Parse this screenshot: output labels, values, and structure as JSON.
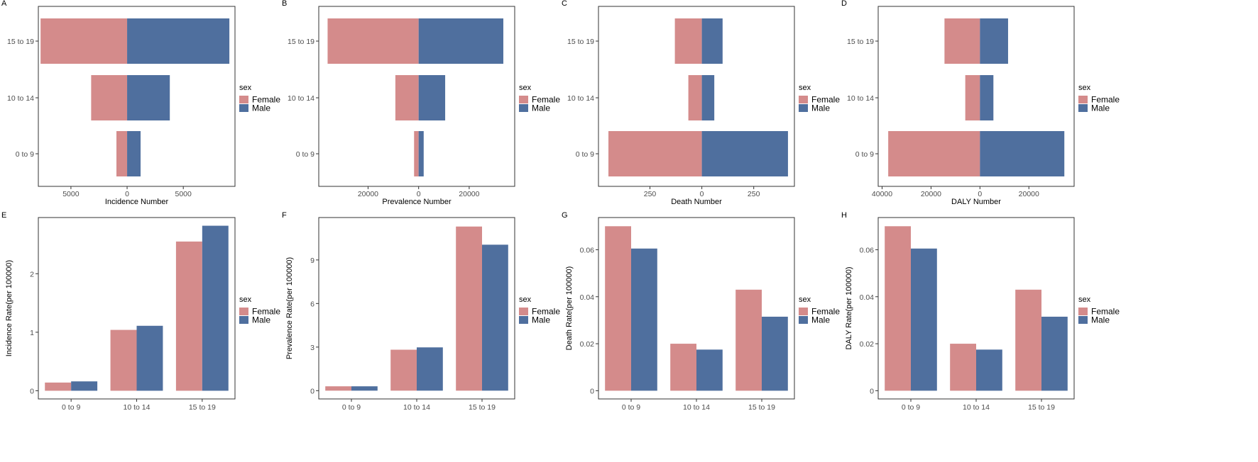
{
  "colors": {
    "female": "#d48b8b",
    "male": "#4f6f9e"
  },
  "legend": {
    "title": "sex",
    "items": [
      "Female",
      "Male"
    ]
  },
  "chart_data": [
    {
      "panel": "A",
      "type": "bar",
      "orientation": "horizontal",
      "categories": [
        "15 to 19",
        "10 to 14",
        "0 to 9"
      ],
      "series": [
        {
          "name": "Female",
          "values": [
            7700,
            3200,
            950
          ]
        },
        {
          "name": "Male",
          "values": [
            9100,
            3800,
            1200
          ]
        }
      ],
      "xlabel": "Incidence Number",
      "xlim": [
        -7900,
        9600
      ],
      "xticks": [
        -5000,
        0,
        5000
      ],
      "xtick_labels": [
        "5000",
        "0",
        "5000"
      ]
    },
    {
      "panel": "B",
      "type": "bar",
      "orientation": "horizontal",
      "categories": [
        "15 to 19",
        "10 to 14",
        "0 to 9"
      ],
      "series": [
        {
          "name": "Female",
          "values": [
            36000,
            9200,
            1800
          ]
        },
        {
          "name": "Male",
          "values": [
            33500,
            10500,
            2000
          ]
        }
      ],
      "xlabel": "Prevalence Number",
      "xlim": [
        -39500,
        38000
      ],
      "xticks": [
        -20000,
        0,
        20000
      ],
      "xtick_labels": [
        "20000",
        "0",
        "20000"
      ]
    },
    {
      "panel": "C",
      "type": "bar",
      "orientation": "horizontal",
      "categories": [
        "15 to 19",
        "10 to 14",
        "0 to 9"
      ],
      "series": [
        {
          "name": "Female",
          "values": [
            130,
            65,
            450
          ]
        },
        {
          "name": "Male",
          "values": [
            100,
            60,
            415
          ]
        }
      ],
      "xlabel": "Death Number",
      "xlim": [
        -498,
        446
      ],
      "xticks": [
        -250,
        0,
        250
      ],
      "xtick_labels": [
        "250",
        "0",
        "250"
      ]
    },
    {
      "panel": "D",
      "type": "bar",
      "orientation": "horizontal",
      "categories": [
        "15 to 19",
        "10 to 14",
        "0 to 9"
      ],
      "series": [
        {
          "name": "Female",
          "values": [
            14500,
            6000,
            37500
          ]
        },
        {
          "name": "Male",
          "values": [
            11500,
            5500,
            34500
          ]
        }
      ],
      "xlabel": "DALY Number",
      "xlim": [
        -41600,
        38500
      ],
      "xticks": [
        -40000,
        -20000,
        0,
        20000
      ],
      "xtick_labels": [
        "40000",
        "20000",
        "0",
        "20000"
      ]
    },
    {
      "panel": "E",
      "type": "bar",
      "categories": [
        "0 to 9",
        "10 to 14",
        "15 to 19"
      ],
      "series": [
        {
          "name": "Female",
          "values": [
            0.14,
            1.04,
            2.55
          ]
        },
        {
          "name": "Male",
          "values": [
            0.16,
            1.11,
            2.82
          ]
        }
      ],
      "ylabel": "Incidence Rate(per 100000)",
      "ylim": [
        -0.14,
        2.96
      ],
      "yticks": [
        0,
        1,
        2
      ],
      "ytick_labels": [
        "0",
        "1",
        "2"
      ]
    },
    {
      "panel": "F",
      "type": "bar",
      "categories": [
        "0 to 9",
        "10 to 14",
        "15 to 19"
      ],
      "series": [
        {
          "name": "Female",
          "values": [
            0.3,
            2.82,
            11.3
          ]
        },
        {
          "name": "Male",
          "values": [
            0.3,
            2.98,
            10.05
          ]
        }
      ],
      "ylabel": "Prevalence Rate(per 100000)",
      "ylim": [
        -0.57,
        11.92
      ],
      "yticks": [
        0,
        3,
        6,
        9
      ],
      "ytick_labels": [
        "0",
        "3",
        "6",
        "9"
      ]
    },
    {
      "panel": "G",
      "type": "bar",
      "categories": [
        "0 to 9",
        "10 to 14",
        "15 to 19"
      ],
      "series": [
        {
          "name": "Female",
          "values": [
            0.07,
            0.02,
            0.043
          ]
        },
        {
          "name": "Male",
          "values": [
            0.0605,
            0.0175,
            0.0315
          ]
        }
      ],
      "ylabel": "Death Rate(per 100000)",
      "ylim": [
        -0.0035,
        0.0737
      ],
      "yticks": [
        0,
        0.02,
        0.04,
        0.06
      ],
      "ytick_labels": [
        "0",
        "0.02",
        "0.04",
        "0.06"
      ]
    },
    {
      "panel": "H",
      "type": "bar",
      "categories": [
        "0 to 9",
        "10 to 14",
        "15 to 19"
      ],
      "series": [
        {
          "name": "Female",
          "values": [
            0.07,
            0.02,
            0.043
          ]
        },
        {
          "name": "Male",
          "values": [
            0.0605,
            0.0175,
            0.0315
          ]
        }
      ],
      "ylabel": "DALY Rate(per 100000)",
      "ylim": [
        -0.0035,
        0.0737
      ],
      "yticks": [
        0,
        0.02,
        0.04,
        0.06
      ],
      "ytick_labels": [
        "0",
        "0.02",
        "0.04",
        "0.06"
      ]
    }
  ]
}
